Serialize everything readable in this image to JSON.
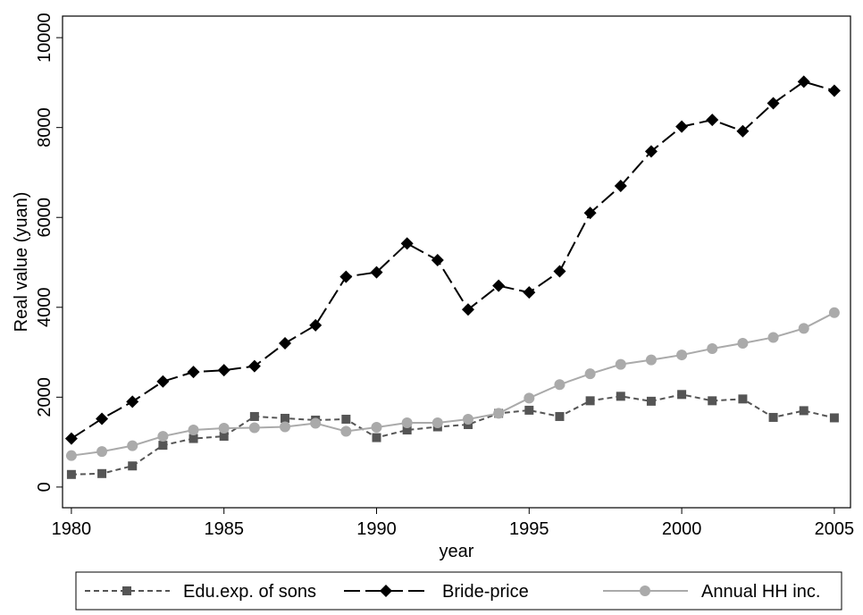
{
  "chart_data": {
    "type": "line",
    "x": [
      1980,
      1981,
      1982,
      1983,
      1984,
      1985,
      1986,
      1987,
      1988,
      1989,
      1990,
      1991,
      1992,
      1993,
      1994,
      1995,
      1996,
      1997,
      1998,
      1999,
      2000,
      2001,
      2002,
      2003,
      2004,
      2005
    ],
    "series": [
      {
        "name": "Edu.exp. of sons",
        "color": "#555555",
        "marker": "square",
        "dash": "short",
        "values": [
          280,
          300,
          470,
          930,
          1080,
          1130,
          1570,
          1530,
          1490,
          1510,
          1100,
          1270,
          1340,
          1390,
          1640,
          1710,
          1570,
          1920,
          2020,
          1910,
          2060,
          1920,
          1960,
          1550,
          1700,
          1540
        ]
      },
      {
        "name": "Bride-price",
        "color": "#000000",
        "marker": "diamond",
        "dash": "long",
        "values": [
          1080,
          1520,
          1900,
          2350,
          2560,
          2600,
          2690,
          3200,
          3600,
          4680,
          4780,
          5420,
          5050,
          3950,
          4480,
          4330,
          4800,
          6100,
          6700,
          7470,
          8020,
          8170,
          7920,
          8540,
          9020,
          8820
        ]
      },
      {
        "name": "Annual HH inc.",
        "color": "#aaaaaa",
        "marker": "circle",
        "dash": "solid",
        "values": [
          700,
          790,
          920,
          1130,
          1270,
          1310,
          1320,
          1340,
          1420,
          1240,
          1330,
          1430,
          1430,
          1510,
          1640,
          1980,
          2280,
          2520,
          2730,
          2830,
          2940,
          3080,
          3200,
          3330,
          3530,
          3880
        ]
      }
    ],
    "xlabel": "year",
    "ylabel": "Real value (yuan)",
    "xlim": [
      1979.71,
      2005.53
    ],
    "ylim": [
      -460,
      10480
    ],
    "xticks": [
      1980,
      1985,
      1990,
      1995,
      2000,
      2005
    ],
    "yticks": [
      0,
      2000,
      4000,
      6000,
      8000,
      10000
    ],
    "legend": "bottom"
  }
}
